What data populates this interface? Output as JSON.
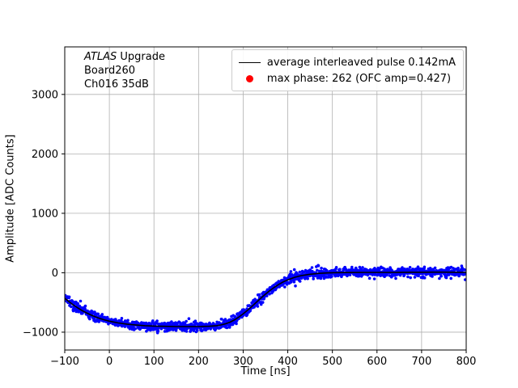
{
  "chart_data": {
    "type": "line",
    "title": "",
    "xlabel": "Time [ns]",
    "ylabel": "Amplitude [ADC Counts]",
    "xlim": [
      -100,
      800
    ],
    "ylim": [
      -1300,
      3800
    ],
    "grid": true,
    "colors": {
      "noise": "#0000ff",
      "average": "#000000",
      "marker": "#ff0000",
      "grid": "#b0b0b0"
    },
    "xticks": {
      "values": [
        -100,
        0,
        100,
        200,
        300,
        400,
        500,
        600,
        700,
        800
      ],
      "labels": [
        "−100",
        "0",
        "100",
        "200",
        "300",
        "400",
        "500",
        "600",
        "700",
        "800"
      ]
    },
    "yticks": {
      "values": [
        -1000,
        0,
        1000,
        2000,
        3000
      ],
      "labels": [
        "−1000",
        "0",
        "1000",
        "2000",
        "3000"
      ]
    },
    "annotation": {
      "line1_italic": "ATLAS",
      "line1_rest": " Upgrade",
      "line2": "Board260",
      "line3": "Ch016 35dB"
    },
    "legend": {
      "position": "upper right",
      "entries": [
        {
          "type": "line",
          "color": "#000000",
          "label": "average interleaved pulse 0.142mA"
        },
        {
          "type": "dot",
          "color": "#ff0000",
          "label": "max phase: 262 (OFC amp=0.427)"
        }
      ]
    },
    "max_phase": 262,
    "ofc_amp": 0.427,
    "pulse_current_mA": 0.142,
    "series": [
      {
        "name": "average interleaved pulse",
        "color": "#000000",
        "x": [
          -100,
          -90,
          -80,
          -70,
          -60,
          -50,
          -40,
          -30,
          -20,
          -10,
          0,
          20,
          40,
          60,
          80,
          100,
          125,
          150,
          175,
          200,
          225,
          240,
          250,
          260,
          270,
          280,
          290,
          300,
          310,
          320,
          330,
          340,
          350,
          360,
          370,
          380,
          390,
          400,
          415,
          430,
          450,
          470,
          490,
          510,
          530,
          550,
          575,
          600,
          625,
          650,
          675,
          700,
          725,
          750,
          775,
          800
        ],
        "y": [
          -430,
          -490,
          -545,
          -595,
          -640,
          -680,
          -715,
          -745,
          -772,
          -795,
          -815,
          -845,
          -866,
          -880,
          -890,
          -897,
          -902,
          -905,
          -906,
          -905,
          -900,
          -890,
          -878,
          -860,
          -833,
          -795,
          -748,
          -692,
          -630,
          -563,
          -494,
          -426,
          -360,
          -299,
          -244,
          -196,
          -154,
          -119,
          -78,
          -49,
          -25,
          -11,
          -3,
          1,
          3,
          4,
          5,
          5,
          6,
          7,
          8,
          9,
          10,
          10,
          8,
          5
        ]
      },
      {
        "name": "interleaved pulse samples",
        "color": "#0000ff",
        "style": "noisy-scatter-around-average",
        "noise_sigma_counts": 40,
        "sample_step_ns": 0.6,
        "dot_radius_px": 1.8
      }
    ]
  }
}
